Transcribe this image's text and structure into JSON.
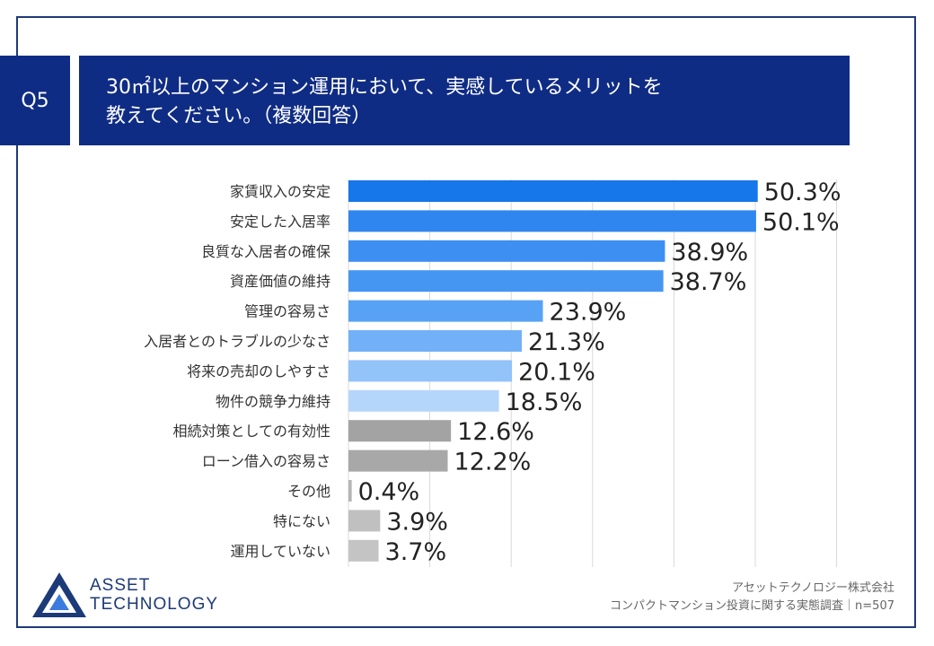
{
  "header": {
    "badge": "Q5",
    "title_line1": "30㎡以上のマンション運用において、実感しているメリットを",
    "title_line2": "教えてください。（複数回答）"
  },
  "chart_data": {
    "type": "bar",
    "orientation": "horizontal",
    "title": "30㎡以上のマンション運用において、実感しているメリットを教えてください。（複数回答）",
    "xlabel": "",
    "ylabel": "",
    "xlim": [
      0,
      60
    ],
    "grid": true,
    "value_suffix": "%",
    "categories": [
      "家賃収入の安定",
      "安定した入居率",
      "良質な入居者の確保",
      "資産価値の維持",
      "管理の容易さ",
      "入居者とのトラブルの少なさ",
      "将来の売却のしやすさ",
      "物件の競争力維持",
      "相続対策としての有効性",
      "ローン借入の容易さ",
      "その他",
      "特にない",
      "運用していない"
    ],
    "values": [
      50.3,
      50.1,
      38.9,
      38.7,
      23.9,
      21.3,
      20.1,
      18.5,
      12.6,
      12.2,
      0.4,
      3.9,
      3.7
    ],
    "bar_colors": [
      "#1677ea",
      "#2f86ef",
      "#3d8ff2",
      "#4596f3",
      "#57a2f5",
      "#72b1f7",
      "#92c3f9",
      "#b5d6fb",
      "#a3a3a3",
      "#a8a8a8",
      "#b5b5b5",
      "#c0c0c0",
      "#c4c4c4"
    ]
  },
  "footer": {
    "company": "アセットテクノロジー株式会社",
    "survey": "コンパクトマンション投資に関する実態調査｜n=507"
  },
  "logo": {
    "line1": "ASSET",
    "line2": "TECHNOLOGY"
  },
  "colors": {
    "brand": "#0f2c85",
    "frame": "#1d3a78"
  }
}
